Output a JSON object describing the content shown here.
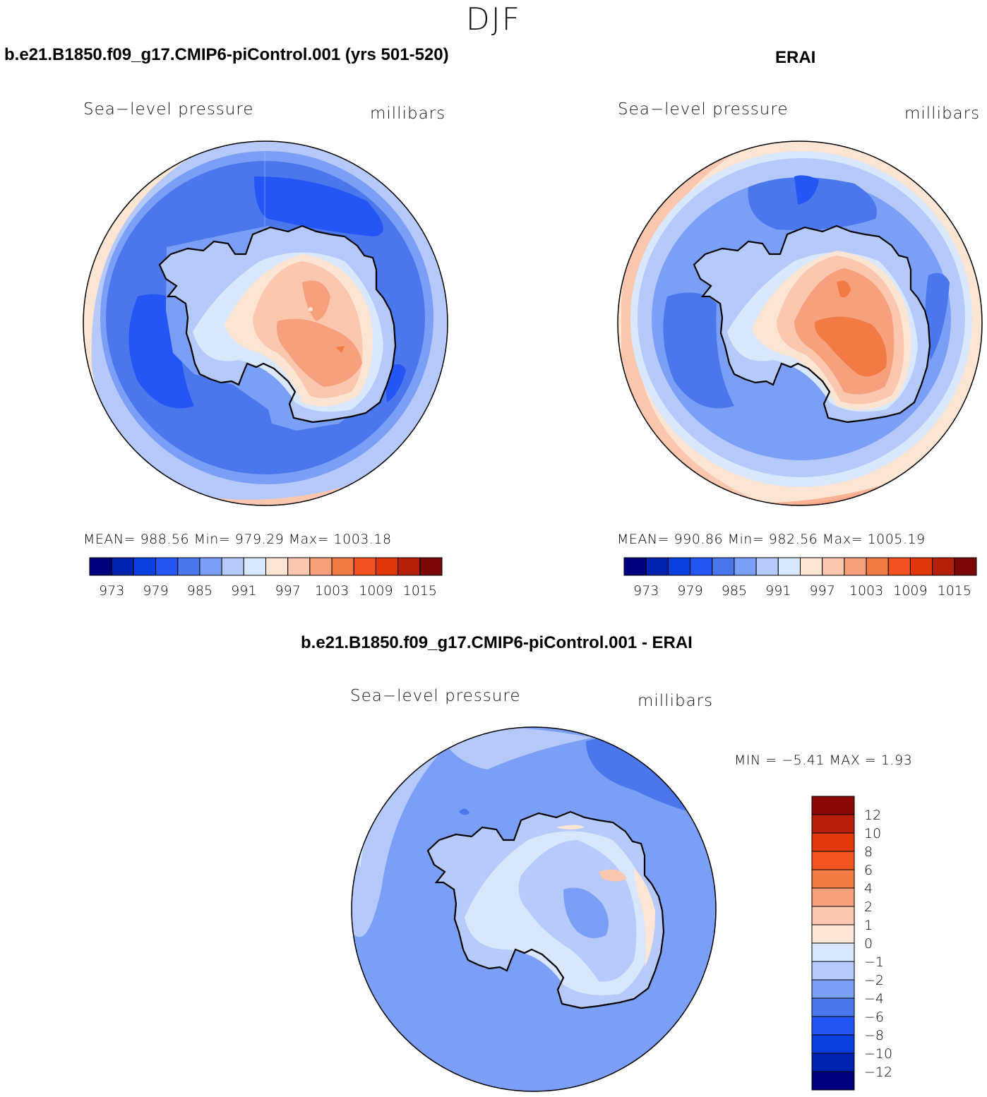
{
  "figure": {
    "season": "DJF"
  },
  "panels": [
    {
      "title": "b.e21.B1850.f09_g17.CMIP6-piControl.001 (yrs 501-520)",
      "variable": "Sea−level pressure",
      "units": "millibars",
      "stats": "MEAN=  988.56   Min=  979.29   Max=  1003.18"
    },
    {
      "title": "ERAI",
      "variable": "Sea−level pressure",
      "units": "millibars",
      "stats": "MEAN=  990.86   Min=  982.56   Max=  1005.19"
    },
    {
      "title": "b.e21.B1850.f09_g17.CMIP6-piControl.001 - ERAI",
      "variable": "Sea−level pressure",
      "units": "millibars",
      "stats": "MIN =   −5.41  MAX =    1.93"
    }
  ],
  "colorbars": {
    "abs": {
      "labels": [
        "973",
        "979",
        "985",
        "991",
        "997",
        "1003",
        "1009",
        "1015"
      ],
      "colors": [
        "#00007f",
        "#0022b0",
        "#0a3fe0",
        "#2456f5",
        "#4a78ec",
        "#7b9ff6",
        "#b5cafb",
        "#d9e8fc",
        "#fde5d3",
        "#fbc7ae",
        "#f7a07c",
        "#f27a45",
        "#f25220",
        "#e1350a",
        "#b41f08",
        "#7c0707"
      ]
    },
    "diff": {
      "labels": [
        "12",
        "10",
        "8",
        "6",
        "4",
        "2",
        "1",
        "0",
        "−1",
        "−2",
        "−4",
        "−6",
        "−8",
        "−10",
        "−12"
      ],
      "colors": [
        "#8b0a05",
        "#b6200a",
        "#e2380a",
        "#f45520",
        "#f27a45",
        "#f7a07c",
        "#fbc7ae",
        "#fde6d6",
        "#d8e7fc",
        "#b6cbfb",
        "#7b9ff6",
        "#4a78ec",
        "#2456f5",
        "#0a3fe0",
        "#0022b0",
        "#00007f"
      ]
    }
  }
}
